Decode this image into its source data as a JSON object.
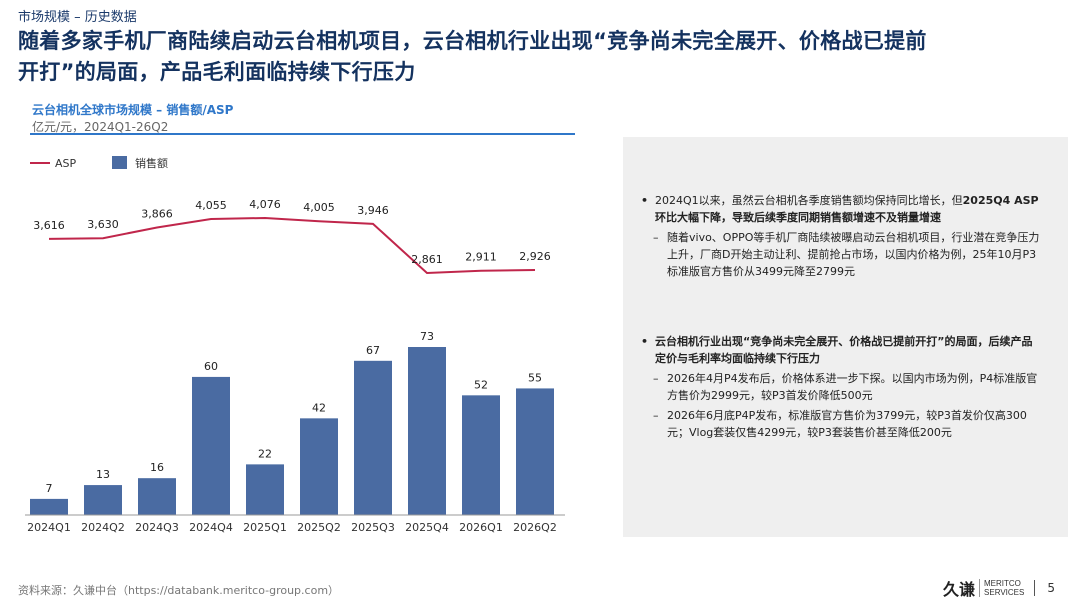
{
  "header": {
    "breadcrumb": "市场规模 – 历史数据",
    "title_line1": "随着多家手机厂商陆续启动云台相机项目，云台相机行业出现“竞争尚未完全展开、价格战已提前",
    "title_line2": "开打”的局面，产品毛利面临持续下行压力"
  },
  "chart_meta": {
    "title": "云台相机全球市场规模 – 销售额/ASP",
    "subtitle": "亿元/元，2024Q1-26Q2"
  },
  "chart_data": {
    "type": "bar",
    "categories": [
      "2024Q1",
      "2024Q2",
      "2024Q3",
      "2024Q4",
      "2025Q1",
      "2025Q2",
      "2025Q3",
      "2025Q4",
      "2026Q1",
      "2026Q2"
    ],
    "series": [
      {
        "name": "销售额",
        "type": "bar",
        "values": [
          7,
          13,
          16,
          60,
          22,
          42,
          67,
          73,
          52,
          55
        ],
        "labels": [
          "7",
          "13",
          "16",
          "60",
          "22",
          "42",
          "67",
          "73",
          "52",
          "55"
        ],
        "color": "#4a6ba2"
      },
      {
        "name": "ASP",
        "type": "line",
        "values": [
          3616,
          3630,
          3866,
          4055,
          4076,
          4005,
          3946,
          2861,
          2911,
          2926
        ],
        "labels": [
          "3,616",
          "3,630",
          "3,866",
          "4,055",
          "4,076",
          "4,005",
          "3,946",
          "2,861",
          "2,911",
          "2,926"
        ],
        "color": "#c0264b"
      }
    ],
    "legend": {
      "position": "top-left"
    },
    "grid": false
  },
  "panel": {
    "b1_text_a": "2024Q1以来，虽然云台相机各季度销售额均保持同比增长，但",
    "b1_bold": "2025Q4 ASP环比大幅下降，导致后续季度同期销售额增速不及销量增速",
    "b1_sub1": "随着vivo、OPPO等手机厂商陆续被曝启动云台相机项目，行业潜在竞争压力上升，厂商D开始主动让利、提前抢占市场，以国内价格为例，25年10月P3标准版官方售价从3499元降至2799元",
    "b2_bold": "云台相机行业出现“竞争尚未完全展开、价格战已提前开打”的局面，后续产品定价与毛利率均面临持续下行压力",
    "b2_sub1": "2026年4月P4发布后，价格体系进一步下探。以国内市场为例，P4标准版官方售价为2999元，较P3首发价降低500元",
    "b2_sub2": "2026年6月底P4P发布，标准版官方售价为3799元，较P3首发价仅高300元；Vlog套装仅售4299元，较P3套装售价甚至降低200元"
  },
  "footer": {
    "source": "资料来源：久谦中台（https://databank.meritco-group.com）",
    "logo_cn": "久谦",
    "logo_en1": "MERITCO",
    "logo_en2": "SERVICES",
    "page": "5"
  }
}
